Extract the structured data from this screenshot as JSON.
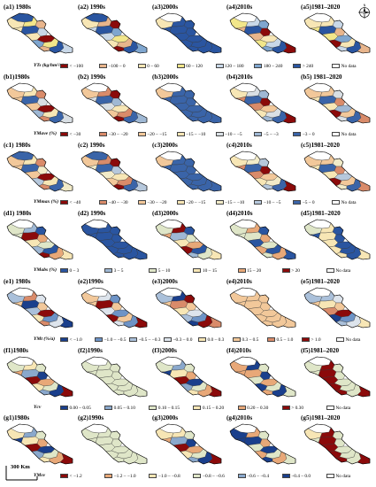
{
  "rows": [
    {
      "id": "a",
      "panels": [
        "(a1) 1980s",
        "(a2) 1990s",
        "(a3)2000s",
        "(a4)2010s",
        "(a5)1981–2020"
      ],
      "legend_title": "YTs (kg/hm²/a)",
      "legend": [
        {
          "label": "< −100",
          "color": "#8b0a0a"
        },
        {
          "label": "−100 – 0",
          "color": "#e8b58c"
        },
        {
          "label": "0 – 60",
          "color": "#f7e6b5"
        },
        {
          "label": "60 – 120",
          "color": "#f2e68a"
        },
        {
          "label": "120 – 180",
          "color": "#c9d8e8"
        },
        {
          "label": "180 – 240",
          "color": "#7fa6cf"
        },
        {
          "label": "> 240",
          "color": "#2a55a0"
        },
        {
          "label": "No data",
          "color": "#ffffff"
        }
      ]
    },
    {
      "id": "b",
      "panels": [
        "(b1)1980s",
        "(b2) 1990s",
        "(b3)2000s",
        "(b4)2010s",
        "(b5) 1981–2020"
      ],
      "legend_title": "YMave (%)",
      "legend": [
        {
          "label": "< −30",
          "color": "#8b0a0a"
        },
        {
          "label": "−30 – −20",
          "color": "#d98b6a"
        },
        {
          "label": "−20 – −15",
          "color": "#f2c89a"
        },
        {
          "label": "−15 – −10",
          "color": "#f7e6b5"
        },
        {
          "label": "−10 – −5",
          "color": "#d9dfe4"
        },
        {
          "label": "−5 – −3",
          "color": "#9fb8d4"
        },
        {
          "label": "−3 – 0",
          "color": "#3a64a8"
        },
        {
          "label": "No data",
          "color": "#ffffff"
        }
      ]
    },
    {
      "id": "c",
      "panels": [
        "(c1) 1980s",
        "(c2) 1990s",
        "(c3)2000s",
        "(c4)2010s",
        "(c5)1981–2020"
      ],
      "legend_title": "YMmax (%)",
      "legend": [
        {
          "label": "< −40",
          "color": "#8b0a0a"
        },
        {
          "label": "−40 – −30",
          "color": "#d98b6a"
        },
        {
          "label": "−30 – −20",
          "color": "#f2c89a"
        },
        {
          "label": "−20 – −15",
          "color": "#f7e6b5"
        },
        {
          "label": "−15 – −10",
          "color": "#f2ebc8"
        },
        {
          "label": "−10 – −5",
          "color": "#b6c8dc"
        },
        {
          "label": "−5 – 0",
          "color": "#3a64a8"
        },
        {
          "label": "No data",
          "color": "#ffffff"
        }
      ]
    },
    {
      "id": "d",
      "panels": [
        "(d1) 1980s",
        "(d2) 1990s",
        "(d3)2000s",
        "(d4)2010s",
        "(d5)1981–2020"
      ],
      "legend_title": "YMabs (%)",
      "legend": [
        {
          "label": "0 – 3",
          "color": "#2a55a0"
        },
        {
          "label": "3 – 5",
          "color": "#9fb8d4"
        },
        {
          "label": "5 – 10",
          "color": "#dfe6c8"
        },
        {
          "label": "10 – 15",
          "color": "#f7e6b5"
        },
        {
          "label": "15 – 20",
          "color": "#e8a878"
        },
        {
          "label": "> 20",
          "color": "#8b0a0a"
        },
        {
          "label": "No data",
          "color": "#ffffff"
        }
      ]
    },
    {
      "id": "e",
      "panels": [
        "(e1) 1980s",
        "(e2)1990s",
        "(e3)2000s",
        "(e4)2010s",
        "(e5)1981–2020"
      ],
      "legend_title": "YMt (%/a)",
      "legend": [
        {
          "label": "< −1.0",
          "color": "#1a3f8c"
        },
        {
          "label": "−1.0 – −0.5",
          "color": "#6d93c6"
        },
        {
          "label": "−0.5 – −0.3",
          "color": "#aac0da"
        },
        {
          "label": "−0.3 – 0.0",
          "color": "#dde4ec"
        },
        {
          "label": "0.0 – 0.3",
          "color": "#f7e6b5"
        },
        {
          "label": "0.3 – 0.5",
          "color": "#f2c89a"
        },
        {
          "label": "0.5 – 1.0",
          "color": "#d98b6a"
        },
        {
          "label": "> 1.0",
          "color": "#8b0a0a"
        },
        {
          "label": "No data",
          "color": "#ffffff"
        }
      ]
    },
    {
      "id": "f",
      "panels": [
        "(f1)1980s",
        "(f2)1990s",
        "(f3)2000s",
        "(f4)2010s",
        "(f5)1981–2020"
      ],
      "legend_title": "Ycv",
      "legend": [
        {
          "label": "0.00 – 0.05",
          "color": "#1a3f8c"
        },
        {
          "label": "0.05 – 0.10",
          "color": "#8aa8cc"
        },
        {
          "label": "0.10 – 0.15",
          "color": "#dfe6c8"
        },
        {
          "label": "0.15 – 0.20",
          "color": "#f7e6b5"
        },
        {
          "label": "0.20 – 0.30",
          "color": "#e8a878"
        },
        {
          "label": "> 0.30",
          "color": "#8b0a0a"
        },
        {
          "label": "No data",
          "color": "#ffffff"
        }
      ]
    },
    {
      "id": "g",
      "panels": [
        "(g1)1980s",
        "(g2)1990s",
        "(g3)2000s",
        "(g4)2010s",
        "(g5)1981–2020"
      ],
      "legend_title": "YMsv",
      "legend": [
        {
          "label": "< −1.2",
          "color": "#8b0a0a"
        },
        {
          "label": "−1.2 – −1.0",
          "color": "#e8a878"
        },
        {
          "label": "−1.0 – −0.8",
          "color": "#f7e6b5"
        },
        {
          "label": "−0.8 – −0.6",
          "color": "#dfe6c8"
        },
        {
          "label": "−0.6 – −0.4",
          "color": "#8aa8cc"
        },
        {
          "label": "−0.4 – 0.0",
          "color": "#1a3f8c"
        },
        {
          "label": "No data",
          "color": "#ffffff"
        }
      ]
    }
  ],
  "compass": {
    "label": "N"
  },
  "scalebar": {
    "label": "300 Km"
  }
}
